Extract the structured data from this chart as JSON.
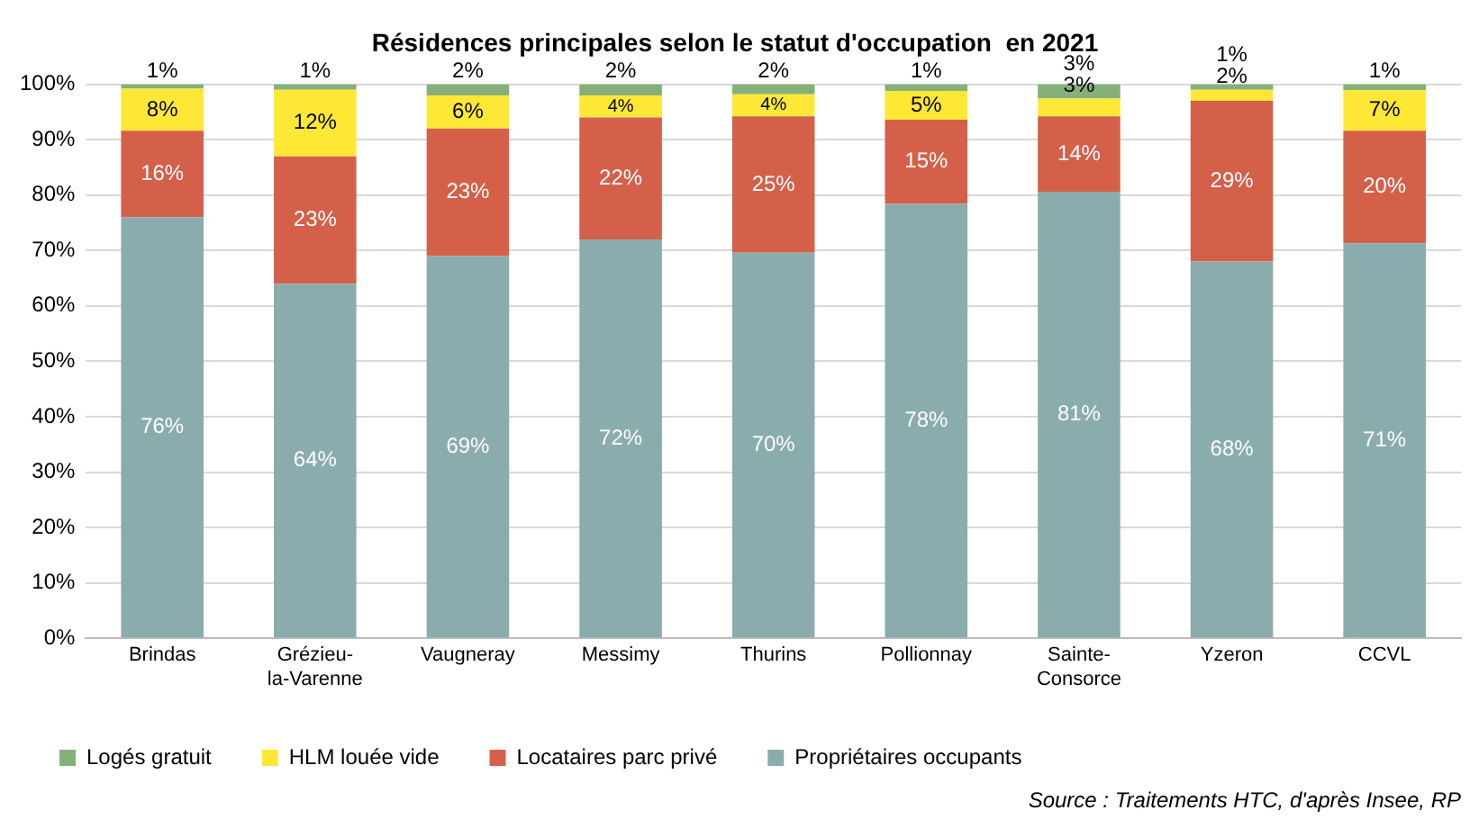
{
  "chart_data": {
    "type": "bar",
    "stacked": true,
    "title": "Résidences principales selon le statut d'occupation  en 2021",
    "categories": [
      "Brindas",
      "Grézieu-la-Varenne",
      "Vaugneray",
      "Messimy",
      "Thurins",
      "Pollionnay",
      "Sainte-Consorce",
      "Yzeron",
      "CCVL"
    ],
    "series": [
      {
        "name": "Propriétaires occupants",
        "color": "#8aacac",
        "values": [
          76,
          64,
          69,
          72,
          69.6,
          78.4,
          80.6,
          68,
          71.3
        ],
        "value_labels": [
          "76%",
          "64%",
          "69%",
          "72%",
          "70%",
          "78%",
          "81%",
          "68%",
          "71%"
        ]
      },
      {
        "name": "Locataires parc privé",
        "color": "#d4604a",
        "values": [
          15.6,
          23,
          23,
          22,
          24.6,
          15.2,
          13.6,
          29,
          20.3
        ],
        "value_labels": [
          "16%",
          "23%",
          "23%",
          "22%",
          "25%",
          "15%",
          "14%",
          "29%",
          "20%"
        ]
      },
      {
        "name": "HLM louée vide",
        "color": "#ffe835",
        "values": [
          7.6,
          12,
          6,
          4,
          4,
          5.2,
          3.2,
          2,
          7.3
        ],
        "value_labels": [
          "8%",
          "12%",
          "6%",
          "4%",
          "4%",
          "5%",
          "3%",
          "2%",
          "7%"
        ]
      },
      {
        "name": "Logés gratuit",
        "color": "#86b07a",
        "values": [
          0.8,
          1,
          2,
          2,
          1.8,
          1.2,
          2.6,
          1,
          1.1
        ],
        "value_labels": [
          "1%",
          "1%",
          "2%",
          "2%",
          "2%",
          "1%",
          "3%",
          "1%",
          "1%"
        ]
      }
    ],
    "ylim": [
      0,
      100
    ],
    "yticks": [
      {
        "value": 0,
        "label": "0%"
      },
      {
        "value": 10,
        "label": "10%"
      },
      {
        "value": 20,
        "label": "20%"
      },
      {
        "value": 30,
        "label": "30%"
      },
      {
        "value": 40,
        "label": "40%"
      },
      {
        "value": 50,
        "label": "50%"
      },
      {
        "value": 60,
        "label": "60%"
      },
      {
        "value": 70,
        "label": "70%"
      },
      {
        "value": 80,
        "label": "80%"
      },
      {
        "value": 90,
        "label": "90%"
      },
      {
        "value": 100,
        "label": "100%"
      }
    ],
    "grid": "y",
    "legend": "bottom",
    "annotations": [
      "Source : Traitements HTC, d'après Insee, RP"
    ]
  }
}
